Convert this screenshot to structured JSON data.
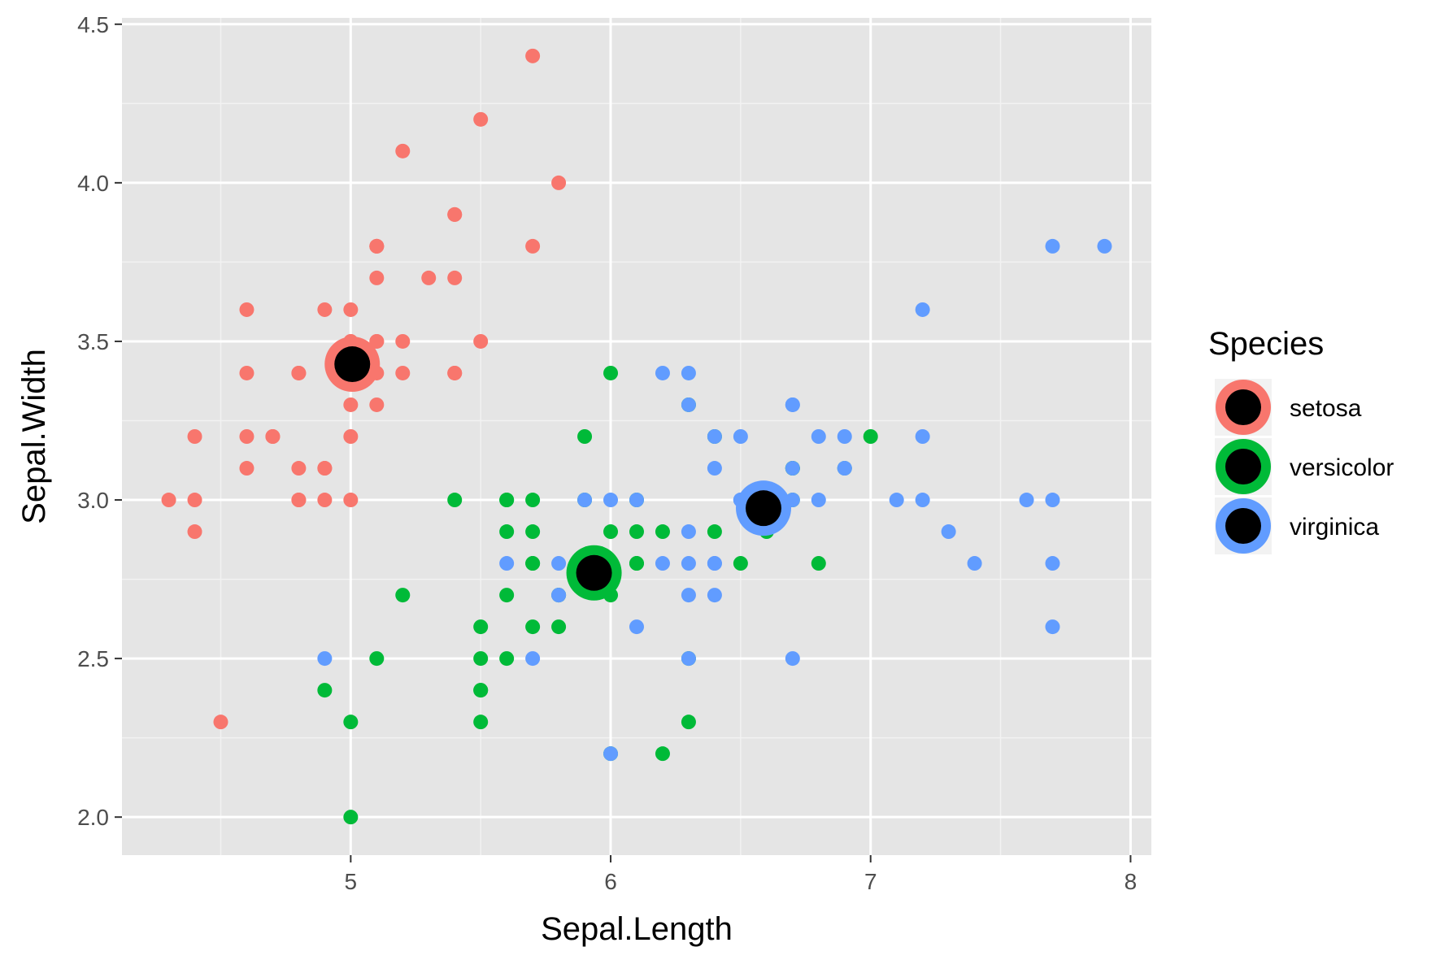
{
  "chart_data": {
    "type": "scatter",
    "title": "",
    "xlabel": "Sepal.Length",
    "ylabel": "Sepal.Width",
    "xlim": [
      4.12,
      8.08
    ],
    "ylim": [
      1.88,
      4.52
    ],
    "x_ticks": [
      5,
      6,
      7,
      8
    ],
    "x_tick_labels": [
      "5",
      "6",
      "7",
      "8"
    ],
    "y_ticks": [
      2.0,
      2.5,
      3.0,
      3.5,
      4.0,
      4.5
    ],
    "y_tick_labels": [
      "2.0",
      "2.5",
      "3.0",
      "3.5",
      "4.0",
      "4.5"
    ],
    "grid": true,
    "panel_background": "#e5e5e5",
    "legend": {
      "title": "Species",
      "placement": "right",
      "entries": [
        "setosa",
        "versicolor",
        "virginica"
      ]
    },
    "series": [
      {
        "name": "setosa",
        "color": "#f8766d",
        "centroid": {
          "x": 5.006,
          "y": 3.428
        },
        "points": [
          [
            5.1,
            3.5
          ],
          [
            4.9,
            3.0
          ],
          [
            4.7,
            3.2
          ],
          [
            4.6,
            3.1
          ],
          [
            5.0,
            3.6
          ],
          [
            5.4,
            3.9
          ],
          [
            4.6,
            3.4
          ],
          [
            5.0,
            3.4
          ],
          [
            4.4,
            2.9
          ],
          [
            4.9,
            3.1
          ],
          [
            5.4,
            3.7
          ],
          [
            4.8,
            3.4
          ],
          [
            4.8,
            3.0
          ],
          [
            4.3,
            3.0
          ],
          [
            5.8,
            4.0
          ],
          [
            5.7,
            4.4
          ],
          [
            5.4,
            3.9
          ],
          [
            5.1,
            3.5
          ],
          [
            5.7,
            3.8
          ],
          [
            5.1,
            3.8
          ],
          [
            5.4,
            3.4
          ],
          [
            5.1,
            3.7
          ],
          [
            4.6,
            3.6
          ],
          [
            5.1,
            3.3
          ],
          [
            4.8,
            3.4
          ],
          [
            5.0,
            3.0
          ],
          [
            5.0,
            3.4
          ],
          [
            5.2,
            3.5
          ],
          [
            5.2,
            3.4
          ],
          [
            4.7,
            3.2
          ],
          [
            4.8,
            3.1
          ],
          [
            5.4,
            3.4
          ],
          [
            5.2,
            4.1
          ],
          [
            5.5,
            4.2
          ],
          [
            4.9,
            3.1
          ],
          [
            5.0,
            3.2
          ],
          [
            5.5,
            3.5
          ],
          [
            4.9,
            3.6
          ],
          [
            4.4,
            3.0
          ],
          [
            5.1,
            3.4
          ],
          [
            5.0,
            3.5
          ],
          [
            4.5,
            2.3
          ],
          [
            4.4,
            3.2
          ],
          [
            5.0,
            3.5
          ],
          [
            5.1,
            3.8
          ],
          [
            4.8,
            3.0
          ],
          [
            5.1,
            3.8
          ],
          [
            4.6,
            3.2
          ],
          [
            5.3,
            3.7
          ],
          [
            5.0,
            3.3
          ]
        ]
      },
      {
        "name": "versicolor",
        "color": "#00ba38",
        "centroid": {
          "x": 5.936,
          "y": 2.77
        },
        "points": [
          [
            7.0,
            3.2
          ],
          [
            6.4,
            3.2
          ],
          [
            6.9,
            3.1
          ],
          [
            5.5,
            2.3
          ],
          [
            6.5,
            2.8
          ],
          [
            5.7,
            2.8
          ],
          [
            6.3,
            3.3
          ],
          [
            4.9,
            2.4
          ],
          [
            6.6,
            2.9
          ],
          [
            5.2,
            2.7
          ],
          [
            5.0,
            2.0
          ],
          [
            5.9,
            3.0
          ],
          [
            6.0,
            2.2
          ],
          [
            6.1,
            2.9
          ],
          [
            5.6,
            2.9
          ],
          [
            6.7,
            3.1
          ],
          [
            5.6,
            3.0
          ],
          [
            5.8,
            2.7
          ],
          [
            6.2,
            2.2
          ],
          [
            5.6,
            2.5
          ],
          [
            5.9,
            3.2
          ],
          [
            6.1,
            2.8
          ],
          [
            6.3,
            2.5
          ],
          [
            6.1,
            2.8
          ],
          [
            6.4,
            2.9
          ],
          [
            6.6,
            3.0
          ],
          [
            6.8,
            2.8
          ],
          [
            6.7,
            3.0
          ],
          [
            6.0,
            2.9
          ],
          [
            5.7,
            2.6
          ],
          [
            5.5,
            2.4
          ],
          [
            5.5,
            2.4
          ],
          [
            5.8,
            2.7
          ],
          [
            6.0,
            2.7
          ],
          [
            5.4,
            3.0
          ],
          [
            6.0,
            3.4
          ],
          [
            6.7,
            3.1
          ],
          [
            6.3,
            2.3
          ],
          [
            5.6,
            3.0
          ],
          [
            5.5,
            2.5
          ],
          [
            5.5,
            2.6
          ],
          [
            6.1,
            3.0
          ],
          [
            5.8,
            2.6
          ],
          [
            5.0,
            2.3
          ],
          [
            5.6,
            2.7
          ],
          [
            5.7,
            3.0
          ],
          [
            5.7,
            2.9
          ],
          [
            6.2,
            2.9
          ],
          [
            5.1,
            2.5
          ],
          [
            5.7,
            2.8
          ]
        ]
      },
      {
        "name": "virginica",
        "color": "#619cff",
        "centroid": {
          "x": 6.588,
          "y": 2.974
        },
        "points": [
          [
            6.3,
            3.3
          ],
          [
            5.8,
            2.7
          ],
          [
            7.1,
            3.0
          ],
          [
            6.3,
            2.9
          ],
          [
            6.5,
            3.0
          ],
          [
            7.6,
            3.0
          ],
          [
            4.9,
            2.5
          ],
          [
            7.3,
            2.9
          ],
          [
            6.7,
            2.5
          ],
          [
            7.2,
            3.6
          ],
          [
            6.5,
            3.2
          ],
          [
            6.4,
            2.7
          ],
          [
            6.8,
            3.0
          ],
          [
            5.7,
            2.5
          ],
          [
            5.8,
            2.8
          ],
          [
            6.4,
            3.2
          ],
          [
            6.5,
            3.0
          ],
          [
            7.7,
            3.8
          ],
          [
            7.7,
            2.6
          ],
          [
            6.0,
            2.2
          ],
          [
            6.9,
            3.2
          ],
          [
            5.6,
            2.8
          ],
          [
            7.7,
            2.8
          ],
          [
            6.3,
            2.7
          ],
          [
            6.7,
            3.3
          ],
          [
            7.2,
            3.2
          ],
          [
            6.2,
            2.8
          ],
          [
            6.1,
            3.0
          ],
          [
            6.4,
            2.8
          ],
          [
            7.2,
            3.0
          ],
          [
            7.4,
            2.8
          ],
          [
            7.9,
            3.8
          ],
          [
            6.4,
            2.8
          ],
          [
            6.3,
            2.8
          ],
          [
            6.1,
            2.6
          ],
          [
            7.7,
            3.0
          ],
          [
            6.3,
            3.4
          ],
          [
            6.4,
            3.1
          ],
          [
            6.0,
            3.0
          ],
          [
            6.9,
            3.1
          ],
          [
            6.7,
            3.1
          ],
          [
            6.9,
            3.1
          ],
          [
            5.8,
            2.7
          ],
          [
            6.8,
            3.2
          ],
          [
            6.7,
            3.3
          ],
          [
            6.7,
            3.0
          ],
          [
            6.3,
            2.5
          ],
          [
            6.5,
            3.0
          ],
          [
            6.2,
            3.4
          ],
          [
            5.9,
            3.0
          ]
        ]
      }
    ]
  }
}
